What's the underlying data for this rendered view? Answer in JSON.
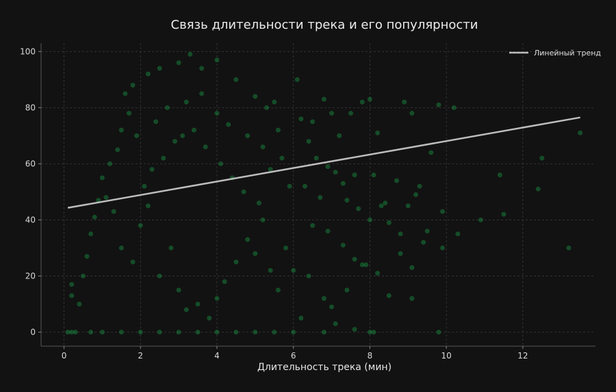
{
  "chart_data": {
    "type": "scatter",
    "title": "Связь длительности трека и его популярности",
    "xlabel": "Длительность трека (мин)",
    "ylabel": "",
    "xlim": [
      -0.6,
      13.9
    ],
    "ylim": [
      -5,
      103
    ],
    "xticks": [
      0,
      2,
      4,
      6,
      8,
      10,
      12
    ],
    "yticks": [
      0,
      20,
      40,
      60,
      80,
      100
    ],
    "grid": true,
    "legend_position": "top-right",
    "colors": {
      "background": "#121212",
      "plot_background": "#121212",
      "points": "#1DB954",
      "trend": "#bdbdbd",
      "grid": "#3a3a3a",
      "text": "#dcdcdc"
    },
    "series": [
      {
        "name": "",
        "type": "scatter",
        "point_opacity": 0.35,
        "sample_points": [
          [
            0.1,
            0
          ],
          [
            0.2,
            0
          ],
          [
            0.3,
            0
          ],
          [
            0.7,
            0
          ],
          [
            1.0,
            0
          ],
          [
            1.5,
            0
          ],
          [
            2.0,
            0
          ],
          [
            2.5,
            0
          ],
          [
            3.0,
            0
          ],
          [
            3.5,
            0
          ],
          [
            4.0,
            0
          ],
          [
            4.5,
            0
          ],
          [
            5.0,
            0
          ],
          [
            5.5,
            0
          ],
          [
            6.0,
            0
          ],
          [
            6.8,
            0
          ],
          [
            8.0,
            0
          ],
          [
            8.1,
            0
          ],
          [
            9.8,
            0
          ],
          [
            0.2,
            13
          ],
          [
            0.2,
            17
          ],
          [
            0.4,
            10
          ],
          [
            0.5,
            20
          ],
          [
            0.6,
            27
          ],
          [
            0.7,
            35
          ],
          [
            0.8,
            41
          ],
          [
            0.9,
            47
          ],
          [
            1.0,
            55
          ],
          [
            1.2,
            60
          ],
          [
            1.1,
            48
          ],
          [
            1.3,
            43
          ],
          [
            1.4,
            65
          ],
          [
            1.5,
            72
          ],
          [
            1.6,
            85
          ],
          [
            1.7,
            78
          ],
          [
            1.8,
            88
          ],
          [
            2.2,
            92
          ],
          [
            2.5,
            94
          ],
          [
            3.0,
            96
          ],
          [
            3.3,
            99
          ],
          [
            3.6,
            94
          ],
          [
            4.0,
            97
          ],
          [
            4.5,
            90
          ],
          [
            5.0,
            84
          ],
          [
            5.3,
            80
          ],
          [
            5.5,
            82
          ],
          [
            6.1,
            90
          ],
          [
            6.2,
            76
          ],
          [
            6.5,
            75
          ],
          [
            6.8,
            83
          ],
          [
            7.0,
            78
          ],
          [
            7.2,
            70
          ],
          [
            7.5,
            78
          ],
          [
            7.8,
            82
          ],
          [
            8.0,
            83
          ],
          [
            8.2,
            71
          ],
          [
            8.9,
            82
          ],
          [
            9.1,
            78
          ],
          [
            9.8,
            81
          ],
          [
            10.2,
            80
          ],
          [
            6.4,
            68
          ],
          [
            6.6,
            62
          ],
          [
            6.9,
            59
          ],
          [
            7.1,
            57
          ],
          [
            7.3,
            53
          ],
          [
            7.6,
            56
          ],
          [
            8.1,
            56
          ],
          [
            8.4,
            46
          ],
          [
            8.7,
            54
          ],
          [
            9.0,
            45
          ],
          [
            9.3,
            52
          ],
          [
            9.6,
            64
          ],
          [
            6.3,
            52
          ],
          [
            6.7,
            48
          ],
          [
            7.4,
            47
          ],
          [
            7.7,
            44
          ],
          [
            8.0,
            40
          ],
          [
            8.3,
            45
          ],
          [
            8.5,
            39
          ],
          [
            8.8,
            35
          ],
          [
            9.2,
            49
          ],
          [
            9.5,
            36
          ],
          [
            9.9,
            43
          ],
          [
            10.3,
            35
          ],
          [
            10.9,
            40
          ],
          [
            11.5,
            42
          ],
          [
            11.4,
            56
          ],
          [
            12.4,
            51
          ],
          [
            12.5,
            62
          ],
          [
            13.2,
            30
          ],
          [
            13.5,
            71
          ],
          [
            6.5,
            38
          ],
          [
            6.9,
            36
          ],
          [
            7.3,
            31
          ],
          [
            7.6,
            26
          ],
          [
            7.9,
            24
          ],
          [
            8.2,
            21
          ],
          [
            8.5,
            13
          ],
          [
            8.8,
            28
          ],
          [
            9.1,
            23
          ],
          [
            9.4,
            32
          ],
          [
            9.9,
            30
          ],
          [
            9.1,
            12
          ],
          [
            6.4,
            20
          ],
          [
            6.8,
            12
          ],
          [
            7.0,
            9
          ],
          [
            7.4,
            15
          ],
          [
            7.8,
            24
          ],
          [
            6.2,
            5
          ],
          [
            7.1,
            3
          ],
          [
            7.6,
            1
          ],
          [
            1.5,
            30
          ],
          [
            1.8,
            25
          ],
          [
            2.0,
            38
          ],
          [
            2.2,
            45
          ],
          [
            2.5,
            20
          ],
          [
            2.8,
            30
          ],
          [
            3.0,
            15
          ],
          [
            3.2,
            8
          ],
          [
            3.5,
            10
          ],
          [
            3.8,
            5
          ],
          [
            4.0,
            12
          ],
          [
            4.2,
            18
          ],
          [
            4.5,
            25
          ],
          [
            4.8,
            33
          ],
          [
            5.0,
            28
          ],
          [
            5.2,
            40
          ],
          [
            5.4,
            22
          ],
          [
            5.6,
            15
          ],
          [
            5.8,
            30
          ],
          [
            6.0,
            22
          ],
          [
            2.1,
            52
          ],
          [
            2.3,
            58
          ],
          [
            2.6,
            62
          ],
          [
            2.9,
            68
          ],
          [
            3.1,
            70
          ],
          [
            3.4,
            72
          ],
          [
            3.7,
            66
          ],
          [
            4.1,
            60
          ],
          [
            4.4,
            55
          ],
          [
            4.7,
            50
          ],
          [
            5.1,
            46
          ],
          [
            5.4,
            58
          ],
          [
            5.7,
            62
          ],
          [
            5.9,
            52
          ],
          [
            1.9,
            70
          ],
          [
            2.4,
            75
          ],
          [
            2.7,
            80
          ],
          [
            3.2,
            82
          ],
          [
            3.6,
            85
          ],
          [
            4.0,
            78
          ],
          [
            4.3,
            74
          ],
          [
            4.8,
            70
          ],
          [
            5.2,
            66
          ],
          [
            5.6,
            72
          ]
        ]
      },
      {
        "name": "Линейный тренд",
        "type": "line",
        "x": [
          0.1,
          13.5
        ],
        "y": [
          44.3,
          76.5
        ]
      }
    ]
  }
}
